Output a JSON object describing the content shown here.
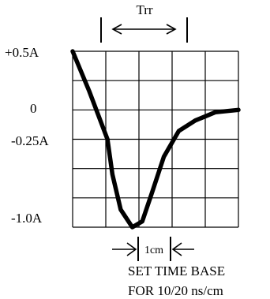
{
  "trr_label": "Trr",
  "y_labels": {
    "pos_half": "+0.5A",
    "zero": "0",
    "neg_quarter": "-0.25A",
    "neg_one": "-1.0A"
  },
  "division_label": "1cm",
  "instruction": {
    "line1": "SET TIME BASE",
    "line2": "FOR 10/20 ns/cm"
  },
  "waveform_points": [
    [
      0,
      0.5
    ],
    [
      0.5,
      0.16
    ],
    [
      1.05,
      -0.25
    ],
    [
      1.2,
      -0.55
    ],
    [
      1.45,
      -0.85
    ],
    [
      1.8,
      -1.0
    ],
    [
      2.1,
      -0.95
    ],
    [
      2.4,
      -0.7
    ],
    [
      2.75,
      -0.4
    ],
    [
      3.2,
      -0.18
    ],
    [
      3.7,
      -0.09
    ],
    [
      4.3,
      -0.02
    ],
    [
      5.0,
      0.0
    ]
  ],
  "reference_current_levels": [
    0.5,
    0,
    -0.25,
    -1.0
  ]
}
